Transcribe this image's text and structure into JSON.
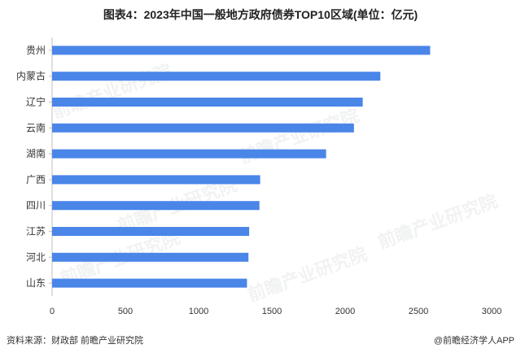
{
  "title": "图表4：2023年中国一般地方政府债券TOP10区域(单位：亿元)",
  "footer": {
    "source": "资料来源：财政部 前瞻产业研究院",
    "brand": "@前瞻经济学人APP"
  },
  "watermark": "前瞻产业研究院",
  "colors": {
    "bar": "#4a86e8",
    "axis": "#bfbfbf"
  },
  "chart_data": {
    "type": "bar",
    "orientation": "horizontal",
    "categories": [
      "贵州",
      "内蒙古",
      "辽宁",
      "云南",
      "湖南",
      "广西",
      "四川",
      "江苏",
      "河北",
      "山东"
    ],
    "values": [
      2580,
      2240,
      2120,
      2060,
      1870,
      1420,
      1415,
      1345,
      1340,
      1330
    ],
    "xlim": [
      0,
      3000
    ],
    "xticks": [
      0,
      500,
      1000,
      1500,
      2000,
      2500,
      3000
    ],
    "grid": false,
    "legend": "none"
  }
}
